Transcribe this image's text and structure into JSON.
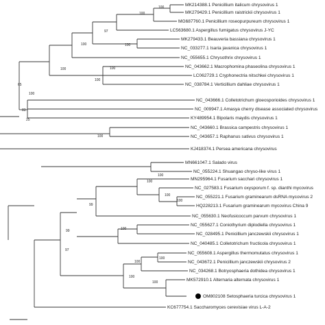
{
  "tree": {
    "marker_color": "#000000",
    "taxa": [
      {
        "id": "t01",
        "label": "MK214388.1 Penicillium italicum chrysovirus 1"
      },
      {
        "id": "t02",
        "label": "MK279429.1 Penicillium raistrickii chrysovirus 1"
      },
      {
        "id": "t03",
        "label": "MG687760.1 Penicillium roseopurpureum chrysovirus 1"
      },
      {
        "id": "t04",
        "label": "LC563680.1 Aspergillus fumigatus chrysovirus J-YC"
      },
      {
        "id": "t05",
        "label": "MK279433.1 Beauveria bassiana chrysovirus 1"
      },
      {
        "id": "t06",
        "label": "NC_033277.1 Isaria javanica chrysovirus 1"
      },
      {
        "id": "t07",
        "label": "NC_055655.1 Chrysothrix chrysovirus 1"
      },
      {
        "id": "t08",
        "label": "NC_043662.1 Macrophomina phaseolina chrysovirus 1"
      },
      {
        "id": "t09",
        "label": "LC062729.1 Cryphonectria nitschkei chrysovirus 1"
      },
      {
        "id": "t10",
        "label": "NC_038784.1 Verticillium dahliae chrysovirus 1"
      },
      {
        "id": "t11",
        "label": "NC_043666.1 Colletotrichum gloeosporioides chrysovirus 1"
      },
      {
        "id": "t12",
        "label": "NC_009947.1 Amasya cherry disease associated chrysovirus"
      },
      {
        "id": "t13",
        "label": "KY489954.1 Bipolaris maydis chrysovirus 1"
      },
      {
        "id": "t14",
        "label": "NC_043660.1 Brassica campestris chrysovirus 1"
      },
      {
        "id": "t15",
        "label": "NC_043657.1 Raphanus sativus chrysovirus 1"
      },
      {
        "id": "t16",
        "label": "KJ418374.1 Persea americana chrysovirus"
      },
      {
        "id": "t17",
        "label": "MN661047.1 Salado virus"
      },
      {
        "id": "t18",
        "label": "NC_055224.1 Shuangao chryso-like virus 1"
      },
      {
        "id": "t19",
        "label": "MN295964.1 Fusarium sacchari chrysovirus 1"
      },
      {
        "id": "t20",
        "label": "NC_027583.1 Fusarium oxysporum f. sp. dianthi mycovirus"
      },
      {
        "id": "t21",
        "label": "NC_055221.1 Fusarium graminearum dsRNA mycovirus 2"
      },
      {
        "id": "t22",
        "label": "HQ228213.1 Fusarium graminearum mycovirus China 9"
      },
      {
        "id": "t23",
        "label": "NC_055630.1 Neofusicoccum parvum chrysovirus 1"
      },
      {
        "id": "t24",
        "label": "NC_055627.1 Coniothyrium diplodiella chrysovirus 1"
      },
      {
        "id": "t25",
        "label": "NC_028495.1 Penicillium janczewskii chrysovirus 1"
      },
      {
        "id": "t26",
        "label": "NC_040485.1 Colletotrichum fructicola chrysovirus 1"
      },
      {
        "id": "t27",
        "label": "NC_055608.1 Aspergillus thermomutatus chrysovirus 1"
      },
      {
        "id": "t28",
        "label": "NC_043672.1 Penicillium janczewskii chrysovirus 2"
      },
      {
        "id": "t29",
        "label": "NC_034268.1 Botryosphaeria dothidea chrysovirus 1"
      },
      {
        "id": "t30",
        "label": "MK572910.1 Alternaria alternata chrysovirus 1"
      },
      {
        "id": "t31",
        "label": "OM802108 Setosphaeria turcica chrysovirus 1",
        "highlight": true
      },
      {
        "id": "t32",
        "label": "KC677754.1 Saccharomyces cerevisiae virus L-A-2"
      }
    ],
    "bootstrap": [
      {
        "id": "b01",
        "value": "100"
      },
      {
        "id": "b02",
        "value": "100"
      },
      {
        "id": "b03",
        "value": "97"
      },
      {
        "id": "b04",
        "value": "100"
      },
      {
        "id": "b05",
        "value": "100"
      },
      {
        "id": "b06",
        "value": "100"
      },
      {
        "id": "b07",
        "value": "100"
      },
      {
        "id": "b08",
        "value": "100"
      },
      {
        "id": "b09",
        "value": "65"
      },
      {
        "id": "b10",
        "value": "100"
      },
      {
        "id": "b11",
        "value": "83"
      },
      {
        "id": "b12",
        "value": "25"
      },
      {
        "id": "b13",
        "value": "100"
      },
      {
        "id": "b14",
        "value": "100"
      },
      {
        "id": "b15",
        "value": "100"
      },
      {
        "id": "b16",
        "value": "100"
      },
      {
        "id": "b17",
        "value": "100"
      },
      {
        "id": "b18",
        "value": "99"
      },
      {
        "id": "b19",
        "value": "99"
      },
      {
        "id": "b20",
        "value": "100"
      },
      {
        "id": "b21",
        "value": "100"
      },
      {
        "id": "b22",
        "value": "97"
      },
      {
        "id": "b23",
        "value": "100"
      },
      {
        "id": "b24",
        "value": "100"
      },
      {
        "id": "b25",
        "value": "100"
      }
    ]
  }
}
